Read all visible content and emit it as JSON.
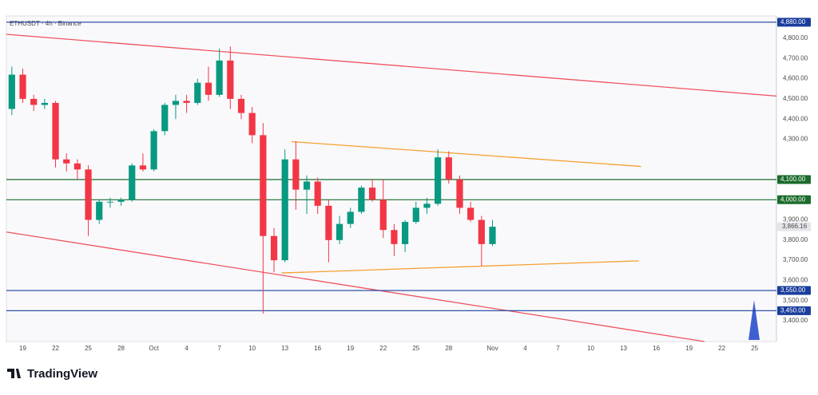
{
  "chart_data": {
    "type": "candlestick",
    "title": "ETHUSDT · 4h · Binance",
    "up_color": "#089981",
    "down_color": "#f23645",
    "xlim": [
      17.5,
      88
    ],
    "ylim": [
      3297,
      4911
    ],
    "xticks": [
      19,
      22,
      25,
      28,
      {
        "value": 31,
        "label": "Oct"
      },
      {
        "value": 34,
        "label": "4"
      },
      {
        "value": 37,
        "label": "7"
      },
      {
        "value": 40,
        "label": "10"
      },
      {
        "value": 43,
        "label": "13"
      },
      {
        "value": 46,
        "label": "16"
      },
      {
        "value": 49,
        "label": "19"
      },
      {
        "value": 52,
        "label": "22"
      },
      {
        "value": 55,
        "label": "25"
      },
      {
        "value": 58,
        "label": "28"
      },
      {
        "value": 62,
        "label": "Nov"
      },
      {
        "value": 65,
        "label": "4"
      },
      {
        "value": 68,
        "label": "7"
      },
      {
        "value": 71,
        "label": "10"
      },
      {
        "value": 74,
        "label": "13"
      },
      {
        "value": 77,
        "label": "16"
      },
      {
        "value": 80,
        "label": "19"
      },
      {
        "value": 83,
        "label": "22"
      },
      {
        "value": 86,
        "label": "25"
      }
    ],
    "yticks": [
      {
        "value": 4800,
        "label": "4,800.00"
      },
      {
        "value": 4700,
        "label": "4,700.00"
      },
      {
        "value": 4600,
        "label": "4,600.00"
      },
      {
        "value": 4500,
        "label": "4,500.00"
      },
      {
        "value": 4400,
        "label": "4,400.00"
      },
      {
        "value": 4300,
        "label": "4,300.00"
      },
      {
        "value": 3900,
        "label": "3,900.00"
      },
      {
        "value": 3800,
        "label": "3,800.00"
      },
      {
        "value": 3700,
        "label": "3,700.00"
      },
      {
        "value": 3600,
        "label": "3,600.00"
      },
      {
        "value": 3500,
        "label": "3,500.00"
      },
      {
        "value": 3400,
        "label": "3,400.00"
      }
    ],
    "x": [
      18,
      19,
      20,
      21,
      22,
      23,
      24,
      25,
      26,
      27,
      28,
      29,
      30,
      31,
      32,
      33,
      34,
      35,
      36,
      37,
      38,
      39,
      40,
      41,
      42,
      43,
      44,
      45,
      46,
      47,
      48,
      49,
      50,
      51,
      52,
      53,
      54,
      55,
      56,
      57,
      58,
      59,
      60,
      61,
      62
    ],
    "open": [
      4450,
      4620,
      4500,
      4470,
      4480,
      4200,
      4180,
      4150,
      3900,
      3990,
      3990,
      4000,
      4170,
      4150,
      4340,
      4470,
      4490,
      4480,
      4580,
      4520,
      4690,
      4500,
      4430,
      4320,
      3820,
      3700,
      4200,
      4050,
      4090,
      3970,
      3800,
      3880,
      3940,
      4060,
      4000,
      3850,
      3780,
      3890,
      3960,
      3980,
      4210,
      4100,
      3960,
      3900,
      3780
    ],
    "high": [
      4660,
      4650,
      4520,
      4500,
      4490,
      4230,
      4200,
      4170,
      4000,
      4010,
      4010,
      4180,
      4230,
      4350,
      4480,
      4520,
      4520,
      4600,
      4660,
      4750,
      4760,
      4520,
      4460,
      4380,
      3860,
      4250,
      4290,
      4120,
      4110,
      4000,
      3920,
      3960,
      4070,
      4100,
      4100,
      3880,
      3900,
      3990,
      4010,
      4250,
      4240,
      4120,
      3990,
      3920,
      3900
    ],
    "low": [
      4420,
      4480,
      4440,
      4450,
      4160,
      4140,
      4100,
      3820,
      3880,
      3960,
      3970,
      3990,
      4140,
      4140,
      4320,
      4400,
      4430,
      4470,
      4490,
      4510,
      4450,
      4400,
      4280,
      3435,
      3640,
      3690,
      3950,
      3930,
      3930,
      3690,
      3780,
      3860,
      3930,
      3990,
      3810,
      3720,
      3740,
      3880,
      3930,
      3970,
      4080,
      3930,
      3890,
      3673,
      3770
    ],
    "close": [
      4620,
      4500,
      4470,
      4480,
      4200,
      4180,
      4150,
      3900,
      3990,
      3990,
      4000,
      4170,
      4150,
      4340,
      4470,
      4490,
      4480,
      4580,
      4520,
      4690,
      4500,
      4430,
      4320,
      3820,
      3700,
      4200,
      4050,
      4090,
      3970,
      3800,
      3880,
      3940,
      4060,
      4000,
      3850,
      3780,
      3890,
      3960,
      3980,
      4210,
      4100,
      3960,
      3900,
      3780,
      3866.16
    ],
    "levels": [
      {
        "value": 4880,
        "label": "4,880.00",
        "color": "#1a3d9c"
      },
      {
        "value": 4100,
        "label": "4,100.00",
        "color": "#1b6b2a"
      },
      {
        "value": 4000,
        "label": "4,000.00",
        "color": "#1b6b2a"
      },
      {
        "value": 3550,
        "label": "3,550.00",
        "color": "#1a3d9c"
      },
      {
        "value": 3450,
        "label": "3,450.00",
        "color": "#1a3d9c"
      }
    ],
    "last_price": {
      "value": 3866.16,
      "label": "3,866.16"
    },
    "trendlines": [
      {
        "color": "#f0545f",
        "x": [
          17.5,
          88
        ],
        "y": [
          4820,
          4514
        ]
      },
      {
        "color": "#f0545f",
        "x": [
          17.5,
          81.4
        ],
        "y": [
          3840,
          3297
        ]
      },
      {
        "color": "#f5a030",
        "x": [
          43.6,
          75.6
        ],
        "y": [
          4288,
          4165
        ]
      },
      {
        "color": "#f5a030",
        "x": [
          42.7,
          75.4
        ],
        "y": [
          3637,
          3697
        ]
      }
    ]
  },
  "footer": "TradingView"
}
